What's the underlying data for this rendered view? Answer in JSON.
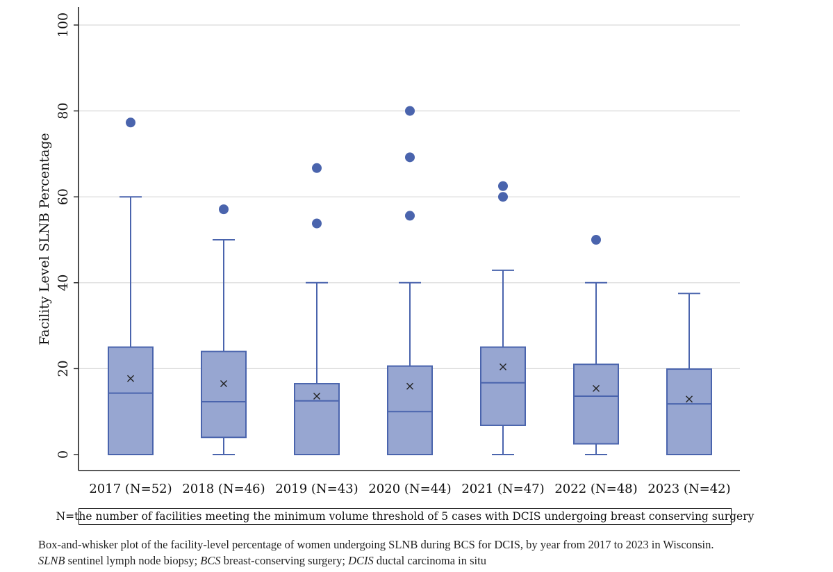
{
  "chart_data": {
    "type": "box",
    "ylabel": "Facility Level SLNB Percentage",
    "ylim": [
      0,
      100
    ],
    "yticks": [
      0,
      20,
      40,
      60,
      80,
      100
    ],
    "grid": true,
    "categories": [
      "2017 (N=52)",
      "2018 (N=46)",
      "2019 (N=43)",
      "2020 (N=44)",
      "2021 (N=47)",
      "2022 (N=48)",
      "2023 (N=42)"
    ],
    "boxes": [
      {
        "min": 0,
        "q1": 0,
        "median": 14.3,
        "q3": 25,
        "max": 60,
        "mean": 17.7,
        "outliers": [
          77.3
        ]
      },
      {
        "min": 0,
        "q1": 4,
        "median": 12.3,
        "q3": 24,
        "max": 50,
        "mean": 16.5,
        "outliers": [
          57.1
        ]
      },
      {
        "min": 0,
        "q1": 0,
        "median": 12.5,
        "q3": 16.5,
        "max": 40,
        "mean": 13.6,
        "outliers": [
          53.8,
          66.7
        ]
      },
      {
        "min": 0,
        "q1": 0,
        "median": 10,
        "q3": 20.6,
        "max": 40,
        "mean": 15.9,
        "outliers": [
          55.6,
          69.2,
          80
        ]
      },
      {
        "min": 0,
        "q1": 6.8,
        "median": 16.7,
        "q3": 25,
        "max": 42.9,
        "mean": 20.4,
        "outliers": [
          60,
          62.5
        ]
      },
      {
        "min": 0,
        "q1": 2.5,
        "median": 13.6,
        "q3": 21,
        "max": 40,
        "mean": 15.4,
        "outliers": [
          50
        ]
      },
      {
        "min": 0,
        "q1": 0,
        "median": 11.8,
        "q3": 19.9,
        "max": 37.5,
        "mean": 12.9,
        "outliers": []
      }
    ]
  },
  "note": "N=the number of facilities meeting the minimum volume threshold of 5 cases with DCIS undergoing breast conserving surgery",
  "caption": {
    "line1": "Box-and-whisker plot of the facility-level percentage of women undergoing SLNB during BCS for DCIS, by year from 2017 to 2023 in Wisconsin.",
    "abbr1_term": "SLNB",
    "abbr1_def": " sentinel lymph node biopsy; ",
    "abbr2_term": "BCS",
    "abbr2_def": " breast-conserving surgery; ",
    "abbr3_term": "DCIS",
    "abbr3_def": " ductal carcinoma in situ"
  }
}
